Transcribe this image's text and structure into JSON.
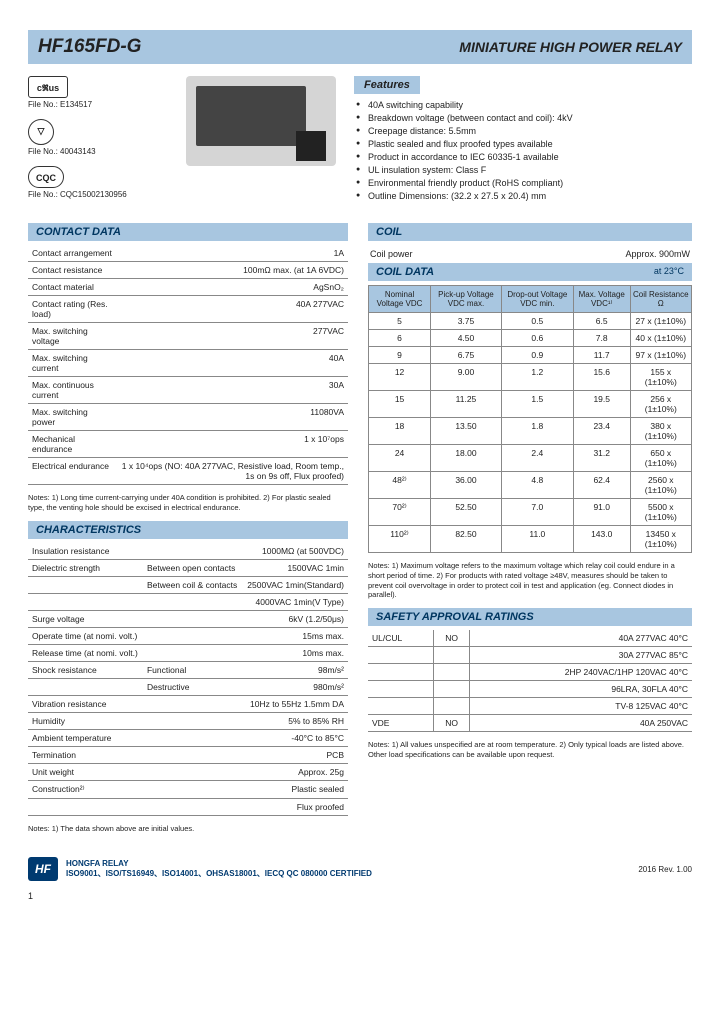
{
  "header": {
    "part_no": "HF165FD-G",
    "title": "MINIATURE HIGH POWER RELAY"
  },
  "certs": [
    {
      "icon": "cRUus",
      "label": "File No.: E134517"
    },
    {
      "icon": "VDE",
      "label": "File No.: 40043143"
    },
    {
      "icon": "CQC",
      "label": "File No.: CQC15002130956"
    }
  ],
  "features": {
    "heading": "Features",
    "items": [
      "40A switching capability",
      "Breakdown voltage (between contact and coil): 4kV",
      "Creepage distance: 5.5mm",
      "Plastic sealed and flux proofed types available",
      "Product in accordance to IEC 60335-1 available",
      "UL insulation system: Class F",
      "Environmental friendly product (RoHS compliant)",
      "Outline Dimensions: (32.2 x 27.5 x 20.4) mm"
    ]
  },
  "contact_data": {
    "heading": "CONTACT DATA",
    "rows": [
      [
        "Contact arrangement",
        "1A"
      ],
      [
        "Contact resistance",
        "100mΩ max. (at 1A 6VDC)"
      ],
      [
        "Contact material",
        "AgSnO₂"
      ],
      [
        "Contact rating (Res. load)",
        "40A 277VAC"
      ],
      [
        "Max. switching voltage",
        "277VAC"
      ],
      [
        "Max. switching current",
        "40A"
      ],
      [
        "Max. continuous current",
        "30A"
      ],
      [
        "Max. switching power",
        "11080VA"
      ],
      [
        "Mechanical endurance",
        "1 x 10⁷ops"
      ],
      [
        "Electrical endurance",
        "1 x 10⁴ops (NO: 40A 277VAC, Resistive load, Room temp., 1s on 9s off, Flux proofed)"
      ]
    ],
    "notes": "Notes: 1) Long time current-carrying under 40A condition is prohibited. 2) For plastic sealed type, the venting hole should be excised in electrical endurance."
  },
  "characteristics": {
    "heading": "CHARACTERISTICS",
    "rows": [
      [
        "Insulation resistance",
        "",
        "1000MΩ (at 500VDC)"
      ],
      [
        "Dielectric strength",
        "Between open contacts",
        "1500VAC 1min"
      ],
      [
        "",
        "Between coil & contacts",
        "2500VAC 1min(Standard)"
      ],
      [
        "",
        "",
        "4000VAC 1min(V Type)"
      ],
      [
        "Surge voltage",
        "",
        "6kV (1.2/50μs)"
      ],
      [
        "Operate time (at nomi. volt.)",
        "",
        "15ms max."
      ],
      [
        "Release time (at nomi. volt.)",
        "",
        "10ms max."
      ],
      [
        "Shock resistance",
        "Functional",
        "98m/s²"
      ],
      [
        "",
        "Destructive",
        "980m/s²"
      ],
      [
        "Vibration resistance",
        "",
        "10Hz to 55Hz 1.5mm DA"
      ],
      [
        "Humidity",
        "",
        "5% to 85% RH"
      ],
      [
        "Ambient temperature",
        "",
        "-40°C to 85°C"
      ],
      [
        "Termination",
        "",
        "PCB"
      ],
      [
        "Unit weight",
        "",
        "Approx. 25g"
      ],
      [
        "Construction²⁾",
        "",
        "Plastic sealed"
      ],
      [
        "",
        "",
        "Flux proofed"
      ]
    ],
    "notes": "Notes: 1) The data shown above are initial values."
  },
  "coil": {
    "heading": "COIL",
    "power_label": "Coil power",
    "power_value": "Approx. 900mW"
  },
  "coil_data": {
    "heading": "COIL DATA",
    "at": "at 23°C",
    "headers": [
      "Nominal Voltage VDC",
      "Pick-up Voltage VDC max.",
      "Drop-out Voltage VDC min.",
      "Max. Voltage VDC¹⁾",
      "Coil Resistance Ω"
    ],
    "rows": [
      [
        "5",
        "3.75",
        "0.5",
        "6.5",
        "27 x (1±10%)"
      ],
      [
        "6",
        "4.50",
        "0.6",
        "7.8",
        "40 x (1±10%)"
      ],
      [
        "9",
        "6.75",
        "0.9",
        "11.7",
        "97 x (1±10%)"
      ],
      [
        "12",
        "9.00",
        "1.2",
        "15.6",
        "155 x (1±10%)"
      ],
      [
        "15",
        "11.25",
        "1.5",
        "19.5",
        "256 x (1±10%)"
      ],
      [
        "18",
        "13.50",
        "1.8",
        "23.4",
        "380 x (1±10%)"
      ],
      [
        "24",
        "18.00",
        "2.4",
        "31.2",
        "650 x (1±10%)"
      ],
      [
        "48²⁾",
        "36.00",
        "4.8",
        "62.4",
        "2560 x (1±10%)"
      ],
      [
        "70²⁾",
        "52.50",
        "7.0",
        "91.0",
        "5500 x (1±10%)"
      ],
      [
        "110²⁾",
        "82.50",
        "11.0",
        "143.0",
        "13450 x (1±10%)"
      ]
    ],
    "notes": "Notes: 1) Maximum voltage refers to the maximum voltage which relay coil could endure in a short period of time. 2) For products with rated voltage ≥48V, measures should be taken to prevent coil overvoltage in order to protect coil in test and application (eg. Connect diodes in parallel)."
  },
  "safety": {
    "heading": "SAFETY APPROVAL RATINGS",
    "rows": [
      [
        "UL/CUL",
        "NO",
        "40A 277VAC 40°C"
      ],
      [
        "",
        "",
        "30A 277VAC 85°C"
      ],
      [
        "",
        "",
        "2HP 240VAC/1HP 120VAC 40°C"
      ],
      [
        "",
        "",
        "96LRA, 30FLA 40°C"
      ],
      [
        "",
        "",
        "TV-8 125VAC 40°C"
      ],
      [
        "VDE",
        "NO",
        "40A 250VAC"
      ]
    ],
    "notes": "Notes: 1) All values unspecified are at room temperature. 2) Only typical loads are listed above. Other load specifications can be available upon request."
  },
  "footer": {
    "company": "HONGFA RELAY",
    "certs": "ISO9001、ISO/TS16949、ISO14001、OHSAS18001、IECQ QC 080000 CERTIFIED",
    "rev": "2016 Rev. 1.00",
    "page": "1"
  }
}
